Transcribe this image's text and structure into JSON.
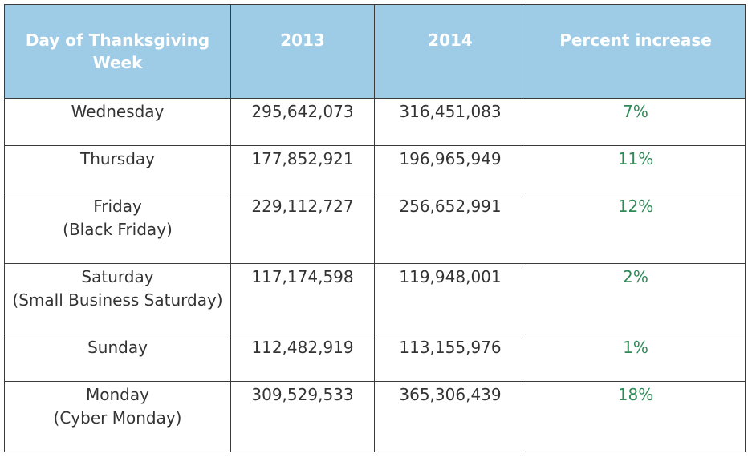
{
  "colors": {
    "header_background": "#9ecbe6",
    "header_text": "#ffffff",
    "body_text": "#333333",
    "percent_text": "#2e8b57",
    "border": "#3a3a3a"
  },
  "chart_data": {
    "type": "table",
    "columns": [
      "Day of Thanksgiving Week",
      "2013",
      "2014",
      "Percent increase"
    ],
    "header": {
      "day_line1": "Day of Thanksgiving",
      "day_line2": "Week",
      "y2013": "2013",
      "y2014": "2014",
      "percent": "Percent increase"
    },
    "rows": [
      {
        "day": "Wednesday",
        "note": "",
        "y2013": "295,642,073",
        "y2014": "316,451,083",
        "percent": "7%"
      },
      {
        "day": "Thursday",
        "note": "",
        "y2013": "177,852,921",
        "y2014": "196,965,949",
        "percent": "11%"
      },
      {
        "day": "Friday",
        "note": "(Black Friday)",
        "y2013": "229,112,727",
        "y2014": "256,652,991",
        "percent": "12%"
      },
      {
        "day": "Saturday",
        "note": "(Small Business Saturday)",
        "y2013": "117,174,598",
        "y2014": "119,948,001",
        "percent": "2%"
      },
      {
        "day": "Sunday",
        "note": "",
        "y2013": "112,482,919",
        "y2014": "113,155,976",
        "percent": "1%"
      },
      {
        "day": "Monday",
        "note": "(Cyber Monday)",
        "y2013": "309,529,533",
        "y2014": "365,306,439",
        "percent": "18%"
      }
    ]
  }
}
